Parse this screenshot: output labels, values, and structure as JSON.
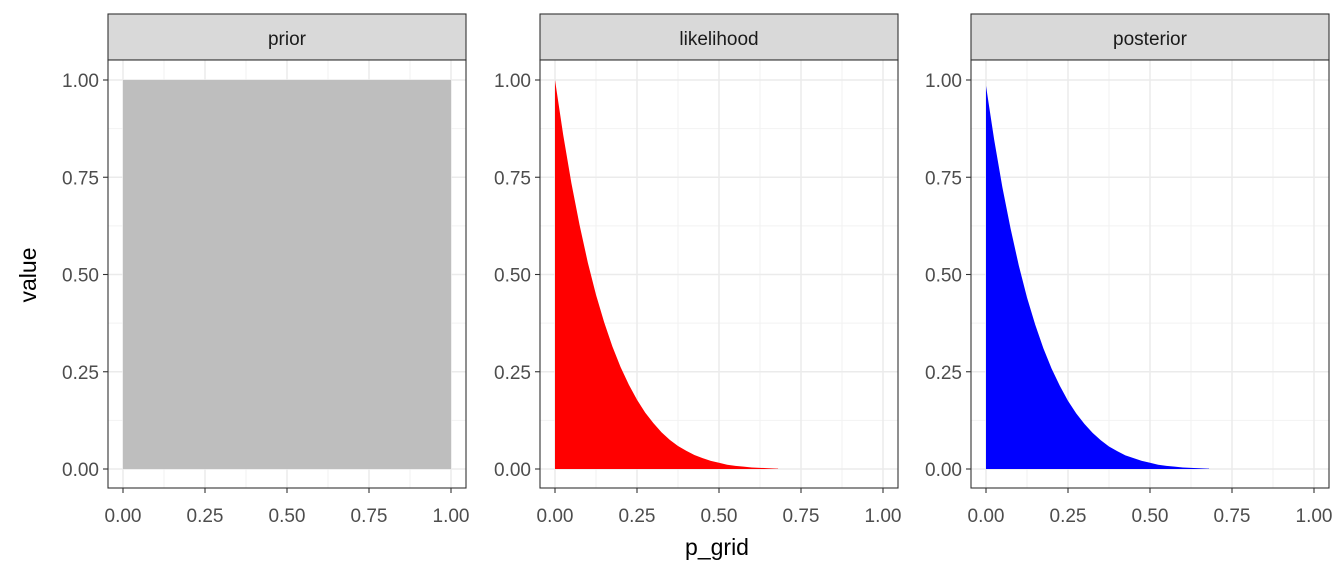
{
  "chart_data": {
    "type": "area",
    "xlabel": "p_grid",
    "ylabel": "value",
    "xlim": [
      0,
      1
    ],
    "ylim": [
      0,
      1
    ],
    "x_ticks": [
      "0.00",
      "0.25",
      "0.50",
      "0.75",
      "1.00"
    ],
    "y_ticks": [
      "0.00",
      "0.25",
      "0.50",
      "0.75",
      "1.00"
    ],
    "x_tick_values": [
      0,
      0.25,
      0.5,
      0.75,
      1
    ],
    "y_tick_values": [
      0,
      0.25,
      0.5,
      0.75,
      1
    ],
    "grid": true,
    "facets": [
      {
        "label": "prior",
        "color": "#bebebe",
        "x": [
          0,
          0.05,
          0.1,
          0.15,
          0.2,
          0.25,
          0.3,
          0.35,
          0.4,
          0.45,
          0.5,
          0.55,
          0.6,
          0.65,
          0.7,
          0.75,
          0.8,
          0.85,
          0.9,
          0.95,
          1.0
        ],
        "y": [
          1,
          1,
          1,
          1,
          1,
          1,
          1,
          1,
          1,
          1,
          1,
          1,
          1,
          1,
          1,
          1,
          1,
          1,
          1,
          1,
          1
        ]
      },
      {
        "label": "likelihood",
        "color": "#ff0000",
        "x": [
          0,
          0.025,
          0.05,
          0.075,
          0.1,
          0.125,
          0.15,
          0.175,
          0.2,
          0.225,
          0.25,
          0.275,
          0.3,
          0.325,
          0.35,
          0.375,
          0.4,
          0.425,
          0.45,
          0.475,
          0.5,
          0.525,
          0.55,
          0.575,
          0.6,
          0.625,
          0.65,
          0.675,
          0.68
        ],
        "y": [
          1.0,
          0.859,
          0.735,
          0.627,
          0.531,
          0.448,
          0.377,
          0.315,
          0.262,
          0.217,
          0.178,
          0.145,
          0.118,
          0.094,
          0.075,
          0.059,
          0.047,
          0.036,
          0.028,
          0.021,
          0.016,
          0.011,
          0.008,
          0.006,
          0.004,
          0.003,
          0.002,
          0.001,
          0.001
        ]
      },
      {
        "label": "posterior",
        "color": "#0000ff",
        "x": [
          0,
          0.025,
          0.05,
          0.075,
          0.1,
          0.125,
          0.15,
          0.175,
          0.2,
          0.225,
          0.25,
          0.275,
          0.3,
          0.325,
          0.35,
          0.375,
          0.4,
          0.425,
          0.45,
          0.475,
          0.5,
          0.525,
          0.55,
          0.575,
          0.6,
          0.625,
          0.65,
          0.675,
          0.68
        ],
        "y": [
          0.985,
          0.846,
          0.724,
          0.618,
          0.523,
          0.441,
          0.371,
          0.31,
          0.258,
          0.214,
          0.175,
          0.143,
          0.116,
          0.093,
          0.074,
          0.058,
          0.046,
          0.035,
          0.028,
          0.021,
          0.016,
          0.011,
          0.008,
          0.006,
          0.004,
          0.003,
          0.002,
          0.001,
          0.001
        ]
      }
    ]
  }
}
